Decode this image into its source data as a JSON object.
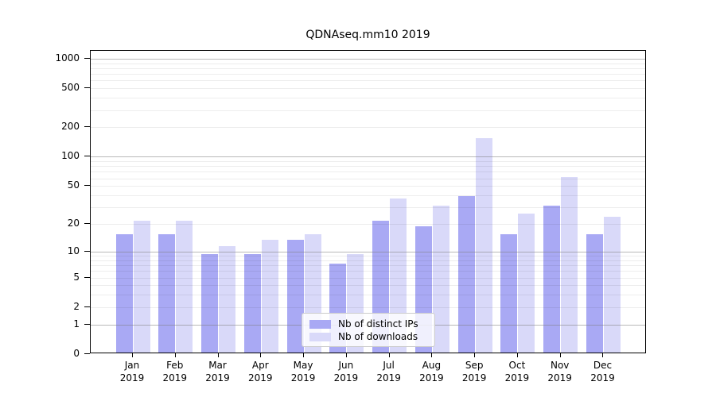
{
  "title": "QDNAseq.mm10 2019",
  "colors": {
    "distinct_ips": "#a9a9f4",
    "downloads": "#d9d9f9",
    "major_grid": "#b0b0b0",
    "minor_grid": "#ececec",
    "axis": "#000000"
  },
  "y_axis": {
    "tick_values": [
      0,
      1,
      2,
      5,
      10,
      20,
      50,
      100,
      200,
      500,
      1000
    ],
    "scale": "log1p"
  },
  "x_axis": {
    "months": [
      "Jan",
      "Feb",
      "Mar",
      "Apr",
      "May",
      "Jun",
      "Jul",
      "Aug",
      "Sep",
      "Oct",
      "Nov",
      "Dec"
    ],
    "year": "2019"
  },
  "legend": {
    "items": [
      {
        "label": "Nb of distinct IPs",
        "series": "distinct_ips"
      },
      {
        "label": "Nb of downloads",
        "series": "downloads"
      }
    ]
  },
  "chart_data": {
    "type": "bar",
    "title": "QDNAseq.mm10 2019",
    "categories": [
      "Jan 2019",
      "Feb 2019",
      "Mar 2019",
      "Apr 2019",
      "May 2019",
      "Jun 2019",
      "Jul 2019",
      "Aug 2019",
      "Sep 2019",
      "Oct 2019",
      "Nov 2019",
      "Dec 2019"
    ],
    "series": [
      {
        "name": "Nb of distinct IPs",
        "values": [
          15,
          15,
          9,
          9,
          13,
          7,
          21,
          18,
          38,
          15,
          30,
          15
        ]
      },
      {
        "name": "Nb of downloads",
        "values": [
          21,
          21,
          11,
          13,
          15,
          9,
          36,
          30,
          150,
          25,
          60,
          23
        ]
      }
    ],
    "xlabel": "",
    "ylabel": "",
    "y_scale": "log1p",
    "y_ticks": [
      0,
      1,
      2,
      5,
      10,
      20,
      50,
      100,
      200,
      500,
      1000
    ],
    "grid": "on",
    "legend_position": "lower center inside plot"
  }
}
